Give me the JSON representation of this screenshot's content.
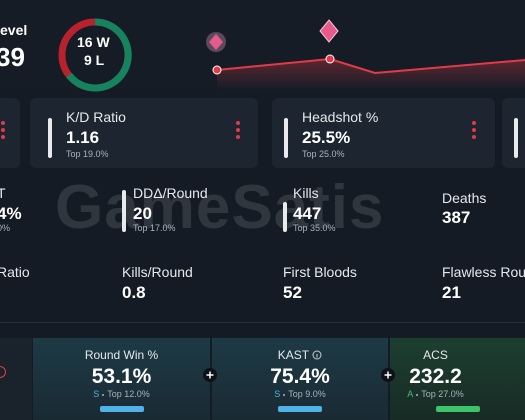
{
  "header": {
    "level_label": "evel",
    "level_value": "39",
    "wins": "16 W",
    "losses": "9 L"
  },
  "cards": [
    {
      "label": "K/D Ratio",
      "value": "1.16",
      "rank": "Top 19.0%"
    },
    {
      "label": "Headshot %",
      "value": "25.5%",
      "rank": "Top 25.0%"
    }
  ],
  "stats_row1": [
    {
      "label": "T",
      "value": "4%",
      "rank": "0%"
    },
    {
      "label": "DDΔ/Round",
      "value": "20",
      "rank": "Top 17.0%"
    },
    {
      "label": "Kills",
      "value": "447",
      "rank": "Top 35.0%"
    },
    {
      "label": "Deaths",
      "value": "387"
    }
  ],
  "stats_row2": [
    {
      "label": "Ratio"
    },
    {
      "label": "Kills/Round",
      "value": "0.8"
    },
    {
      "label": "First Bloods",
      "value": "52"
    },
    {
      "label": "Flawless Rou",
      "value": "21"
    }
  ],
  "watermark": "GameSatis",
  "bottom": [
    {
      "label": "Round Win %",
      "value": "53.1%",
      "grade": "S",
      "rank": "Top 12.0%"
    },
    {
      "label": "KAST",
      "value": "75.4%",
      "grade": "S",
      "rank": "Top 9.0%"
    },
    {
      "label": "ACS",
      "value": "232.2",
      "grade": "A",
      "rank": "Top 27.0%"
    }
  ]
}
